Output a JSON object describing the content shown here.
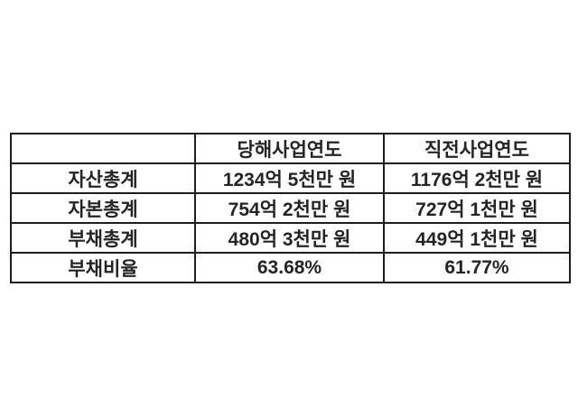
{
  "table": {
    "title_semantic": "financial-summary-table",
    "border_color": "#1d1d1d",
    "text_color": "#242424",
    "background_color": "#ffffff",
    "columns": [
      "",
      "당해사업연도",
      "직전사업연도"
    ],
    "rows": [
      {
        "label": "자산총계",
        "current": "1234억 5천만 원",
        "previous": "1176억 2천만 원"
      },
      {
        "label": "자본총계",
        "current": "754억 2천만 원",
        "previous": "727억 1천만 원"
      },
      {
        "label": "부채총계",
        "current": "480억 3천만 원",
        "previous": "449억 1천만 원"
      },
      {
        "label": "부채비율",
        "current": "63.68%",
        "previous": "61.77%"
      }
    ]
  },
  "chart_data": {
    "type": "table",
    "title": "",
    "categories": [
      "자산총계",
      "자본총계",
      "부채총계",
      "부채비율"
    ],
    "series": [
      {
        "name": "당해사업연도",
        "values": [
          "1234억 5천만 원",
          "754억 2천만 원",
          "480억 3천만 원",
          "63.68%"
        ]
      },
      {
        "name": "직전사업연도",
        "values": [
          "1176억 2천만 원",
          "727억 1천만 원",
          "449억 1천만 원",
          "61.77%"
        ]
      }
    ]
  }
}
